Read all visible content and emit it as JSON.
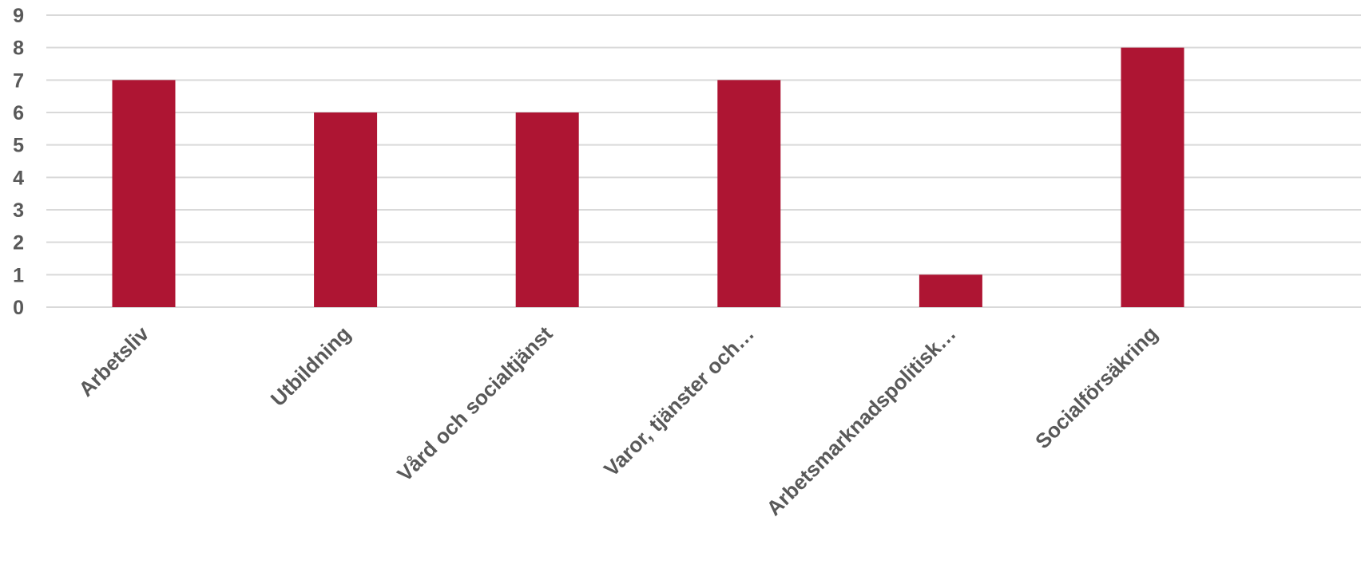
{
  "chart_data": {
    "type": "bar",
    "title": "",
    "xlabel": "",
    "ylabel": "",
    "categories": [
      "Arbetsliv",
      "Utbildning",
      "Vård och socialtjänst",
      "Varor, tjänster och…",
      "Arbetsmarknadspolitisk…",
      "Socialförsäkring"
    ],
    "values": [
      7,
      6,
      6,
      7,
      1,
      8
    ],
    "ylim": [
      0,
      9
    ],
    "yticks": [
      "0",
      "1",
      "2",
      "3",
      "4",
      "5",
      "6",
      "7",
      "8",
      "9"
    ],
    "grid": true,
    "legend": "none",
    "bar_color": "#ae1533",
    "grid_color": "#d9d9d9",
    "tick_color": "#595959"
  }
}
